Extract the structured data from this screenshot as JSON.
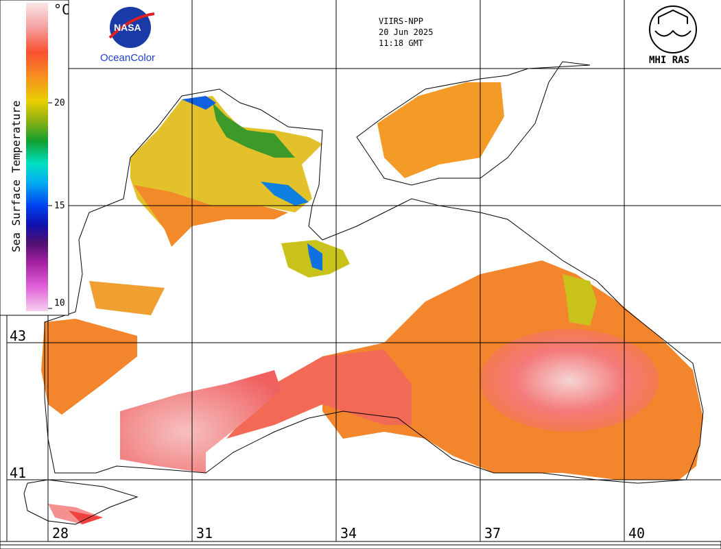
{
  "header": {
    "satellite": "VIIRS-NPP",
    "date": "20 Jun 2025",
    "time": "11:18 GMT"
  },
  "logos": {
    "nasa_text": "NASA",
    "oceancolor": "OceanColor",
    "mhi_text": "MHI RAS"
  },
  "color_scale": {
    "title": "Sea Surface Temperature",
    "unit": "°C",
    "ticks": [
      "20",
      "15",
      "10"
    ],
    "colors": [
      "#f8c8f0",
      "#f090e0",
      "#d040c8",
      "#a020a0",
      "#601070",
      "#2010a0",
      "#0030e0",
      "#0090f0",
      "#00d0e0",
      "#00c070",
      "#20a020",
      "#80b010",
      "#d0d000",
      "#f0c000",
      "#f89020",
      "#f86030",
      "#f05050",
      "#f4a0a0",
      "#f8e0e0"
    ]
  },
  "latitudes": [
    "43",
    "41"
  ],
  "longitudes": [
    "28",
    "31",
    "34",
    "37",
    "40"
  ]
}
